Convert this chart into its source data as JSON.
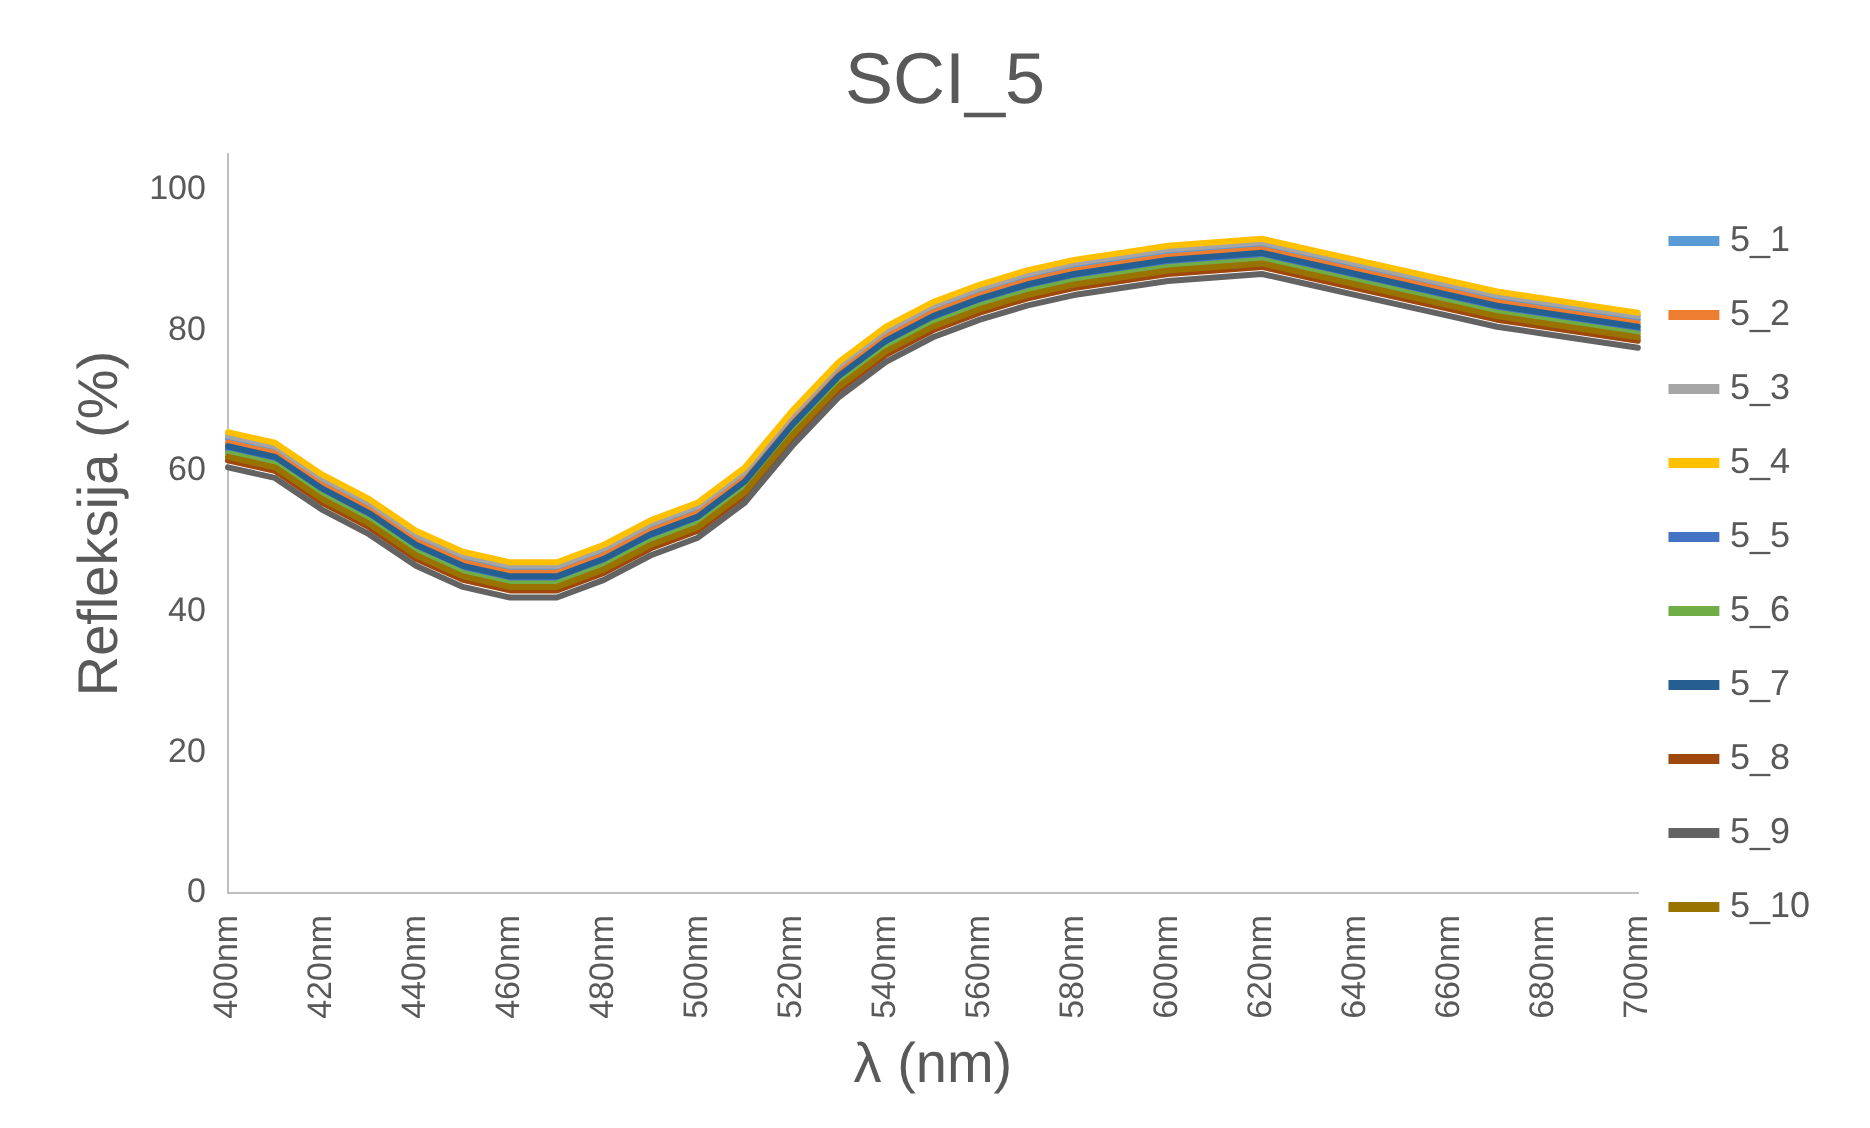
{
  "chart_data": {
    "type": "line",
    "title": "SCI_5",
    "xlabel": "λ (nm)",
    "ylabel": "Refleksija (%)",
    "categories": [
      "400nm",
      null,
      "420nm",
      null,
      "440nm",
      null,
      "460nm",
      null,
      "480nm",
      null,
      "500nm",
      null,
      "520nm",
      null,
      "540nm",
      null,
      "560nm",
      null,
      "580nm",
      null,
      "600nm",
      null,
      "620nm",
      null,
      "640nm",
      null,
      "660nm",
      null,
      "680nm",
      null,
      "700nm"
    ],
    "ylim": [
      0,
      105
    ],
    "yticks": [
      0,
      20,
      40,
      60,
      80,
      100
    ],
    "grid": false,
    "legend": "right",
    "marker": "none",
    "line_style": "solid",
    "series": [
      {
        "name": "5_1",
        "color": "#5b9bd5",
        "values": [
          64.5,
          63,
          58.5,
          55,
          50.5,
          47.5,
          46,
          46,
          48.5,
          52,
          54.5,
          59.5,
          67.5,
          74.5,
          79.5,
          83,
          85.5,
          87.5,
          89,
          90,
          91,
          91.5,
          92,
          90.5,
          89,
          87.5,
          86,
          84.5,
          83.5,
          82.5,
          81.5
        ]
      },
      {
        "name": "5_2",
        "color": "#ed7d31",
        "values": [
          64,
          62.5,
          58,
          54.5,
          50,
          47,
          45.5,
          45.5,
          48,
          51.5,
          54,
          59,
          67,
          74,
          79,
          82.5,
          85,
          87,
          88.5,
          89.5,
          90.5,
          91,
          91.5,
          90,
          88.5,
          87,
          85.5,
          84,
          83,
          82,
          81
        ]
      },
      {
        "name": "5_3",
        "color": "#a5a5a5",
        "values": [
          65,
          63.5,
          59,
          55.5,
          51,
          48,
          46.5,
          46.5,
          49,
          52.5,
          55,
          60,
          68,
          75,
          80,
          83.5,
          86,
          88,
          89.5,
          90.5,
          91.5,
          92,
          92.5,
          91,
          89.5,
          88,
          86.5,
          85,
          84,
          83,
          82
        ]
      },
      {
        "name": "5_4",
        "color": "#ffc000",
        "values": [
          65.5,
          64,
          59.5,
          56,
          51.5,
          48.5,
          47,
          47,
          49.5,
          53,
          55.5,
          60.5,
          68.5,
          75.5,
          80.5,
          84,
          86.5,
          88.5,
          90,
          91,
          92,
          92.5,
          93,
          91.5,
          90,
          88.5,
          87,
          85.5,
          84.5,
          83.5,
          82.5
        ]
      },
      {
        "name": "5_5",
        "color": "#4472c4",
        "values": [
          63,
          61.5,
          57,
          53.5,
          49,
          46,
          44.5,
          44.5,
          47,
          50.5,
          53,
          58,
          66,
          73,
          78,
          81.5,
          84,
          86,
          87.5,
          88.5,
          89.5,
          90,
          90.5,
          89,
          87.5,
          86,
          84.5,
          83,
          82,
          81,
          80
        ]
      },
      {
        "name": "5_6",
        "color": "#70ad47",
        "values": [
          62.5,
          61,
          56.5,
          53,
          48.5,
          45.5,
          44,
          44,
          46.5,
          50,
          52.5,
          57.5,
          65.5,
          72.5,
          77.5,
          81,
          83.5,
          85.5,
          87,
          88,
          89,
          89.5,
          90,
          88.5,
          87,
          85.5,
          84,
          82.5,
          81.5,
          80.5,
          79.5
        ]
      },
      {
        "name": "5_7",
        "color": "#255e91",
        "values": [
          63.5,
          62,
          57.5,
          54,
          49.5,
          46.5,
          45,
          45,
          47.5,
          51,
          53.5,
          58.5,
          66.5,
          73.5,
          78.5,
          82,
          84.5,
          86.5,
          88,
          89,
          90,
          90.5,
          91,
          89.5,
          88,
          86.5,
          85,
          83.5,
          82.5,
          81.5,
          80.5
        ]
      },
      {
        "name": "5_8",
        "color": "#9e480e",
        "values": [
          61.5,
          60,
          55.5,
          52,
          47.5,
          44.5,
          43,
          43,
          45.5,
          49,
          51.5,
          56.5,
          64.5,
          71.5,
          76.5,
          80,
          82.5,
          84.5,
          86,
          87,
          88,
          88.5,
          89,
          87.5,
          86,
          84.5,
          83,
          81.5,
          80.5,
          79.5,
          78.5
        ]
      },
      {
        "name": "5_9",
        "color": "#636363",
        "values": [
          60.5,
          59,
          54.5,
          51,
          46.5,
          43.5,
          42,
          42,
          44.5,
          48,
          50.5,
          55.5,
          63.5,
          70.5,
          75.5,
          79,
          81.5,
          83.5,
          85,
          86,
          87,
          87.5,
          88,
          86.5,
          85,
          83.5,
          82,
          80.5,
          79.5,
          78.5,
          77.5
        ]
      },
      {
        "name": "5_10",
        "color": "#997300",
        "values": [
          62,
          60.5,
          56,
          52.5,
          48,
          45,
          43.5,
          43.5,
          46,
          49.5,
          52,
          57,
          65,
          72,
          77,
          80.5,
          83,
          85,
          86.5,
          87.5,
          88.5,
          89,
          89.5,
          88,
          86.5,
          85,
          83.5,
          82,
          81,
          80,
          79
        ]
      }
    ]
  }
}
